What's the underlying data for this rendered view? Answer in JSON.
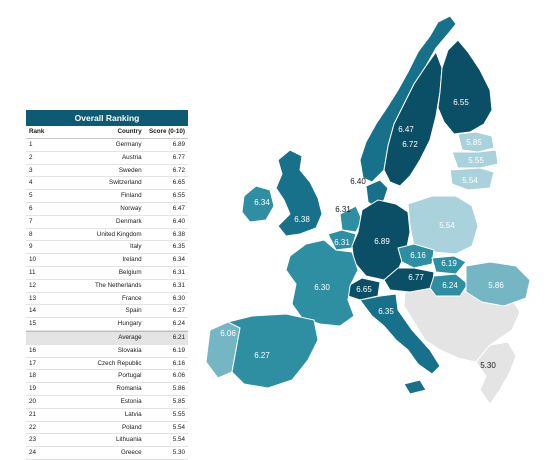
{
  "table": {
    "title": "Overall Ranking",
    "headers": {
      "rank": "Rank",
      "country": "Country",
      "score": "Score (0-10)"
    },
    "rows": [
      {
        "rank": "1",
        "country": "Germany",
        "score": "6.89"
      },
      {
        "rank": "2",
        "country": "Austria",
        "score": "6.77"
      },
      {
        "rank": "3",
        "country": "Sweden",
        "score": "6.72"
      },
      {
        "rank": "4",
        "country": "Switzerland",
        "score": "6.65"
      },
      {
        "rank": "5",
        "country": "Finland",
        "score": "6.55"
      },
      {
        "rank": "6",
        "country": "Norway",
        "score": "6.47"
      },
      {
        "rank": "7",
        "country": "Denmark",
        "score": "6.40"
      },
      {
        "rank": "8",
        "country": "United Kingdom",
        "score": "6.38"
      },
      {
        "rank": "9",
        "country": "Italy",
        "score": "6.35"
      },
      {
        "rank": "10",
        "country": "Ireland",
        "score": "6.34"
      },
      {
        "rank": "11",
        "country": "Belgium",
        "score": "6.31"
      },
      {
        "rank": "12",
        "country": "The Netherlands",
        "score": "6.31"
      },
      {
        "rank": "13",
        "country": "France",
        "score": "6.30"
      },
      {
        "rank": "14",
        "country": "Spain",
        "score": "6.27"
      },
      {
        "rank": "15",
        "country": "Hungary",
        "score": "6.24"
      },
      {
        "rank": "",
        "country": "Average",
        "score": "6.21",
        "average": true
      },
      {
        "rank": "16",
        "country": "Slovakia",
        "score": "6.19"
      },
      {
        "rank": "17",
        "country": "Czech Republic",
        "score": "6.16"
      },
      {
        "rank": "18",
        "country": "Portugal",
        "score": "6.06"
      },
      {
        "rank": "19",
        "country": "Romania",
        "score": "5.86"
      },
      {
        "rank": "20",
        "country": "Estonia",
        "score": "5.85"
      },
      {
        "rank": "21",
        "country": "Latvia",
        "score": "5.55"
      },
      {
        "rank": "22",
        "country": "Poland",
        "score": "5.54"
      },
      {
        "rank": "23",
        "country": "Lithuania",
        "score": "5.54"
      },
      {
        "rank": "24",
        "country": "Greece",
        "score": "5.30"
      }
    ]
  },
  "map_labels": {
    "norway": "6.47",
    "sweden": "6.72",
    "finland": "6.55",
    "estonia": "5.85",
    "latvia": "5.55",
    "lithuania": "5.54",
    "denmark": "6.40",
    "ireland": "6.34",
    "uk": "6.38",
    "netherlands": "6.31",
    "belgium": "6.31",
    "germany": "6.89",
    "poland": "5.54",
    "czech": "6.16",
    "slovakia": "6.19",
    "austria": "6.77",
    "hungary": "6.24",
    "romania": "5.86",
    "switzerland": "6.65",
    "france": "6.30",
    "italy": "6.35",
    "portugal": "6.06",
    "spain": "6.27",
    "greece": "5.30"
  },
  "colors": {
    "header": "#0f5a73",
    "darkest": "#0b4f66",
    "dark": "#17718a",
    "mid": "#2e8ea2",
    "light": "#74b6c4",
    "lightest": "#a9d2dc",
    "nodata": "#e4e4e4"
  }
}
